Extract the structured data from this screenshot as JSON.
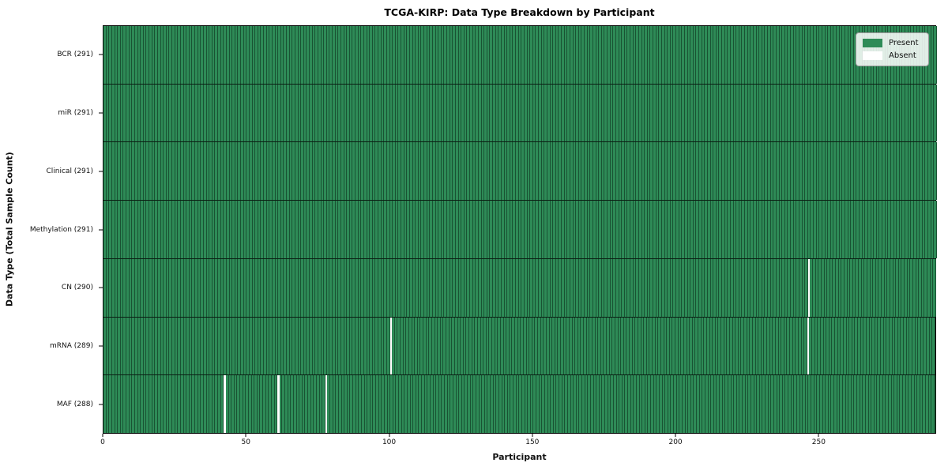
{
  "chart_data": {
    "type": "heatmap",
    "title": "TCGA-KIRP: Data Type Breakdown by Participant",
    "xlabel": "Participant",
    "ylabel": "Data Type (Total Sample Count)",
    "n_participants": 291,
    "x_ticks": [
      0,
      50,
      100,
      150,
      200,
      250
    ],
    "rows": [
      {
        "name": "BCR",
        "label": "BCR (291)",
        "total": 291,
        "absent_participants": []
      },
      {
        "name": "miR",
        "label": "miR (291)",
        "total": 291,
        "absent_participants": []
      },
      {
        "name": "Clinical",
        "label": "Clinical (291)",
        "total": 291,
        "absent_participants": []
      },
      {
        "name": "Methylation",
        "label": "Methylation (291)",
        "total": 291,
        "absent_participants": []
      },
      {
        "name": "CN",
        "label": "CN (290)",
        "total": 290,
        "absent_participants": [
          246
        ]
      },
      {
        "name": "mRNA",
        "label": "mRNA (289)",
        "total": 289,
        "absent_participants": [
          100,
          246
        ]
      },
      {
        "name": "MAF",
        "label": "MAF (288)",
        "total": 288,
        "absent_participants": [
          42,
          61,
          78
        ]
      }
    ],
    "legend": {
      "position": "upper right",
      "entries": [
        {
          "label": "Present",
          "color": "#2e8b57"
        },
        {
          "label": "Absent",
          "color": "#ffffff"
        }
      ]
    },
    "colors": {
      "present": "#2e8b57",
      "absent": "#ffffff",
      "cell_edge": "rgba(0,15,8,0.45)",
      "row_grid": "rgba(0,0,0,0.78)",
      "axis": "#000000"
    }
  }
}
